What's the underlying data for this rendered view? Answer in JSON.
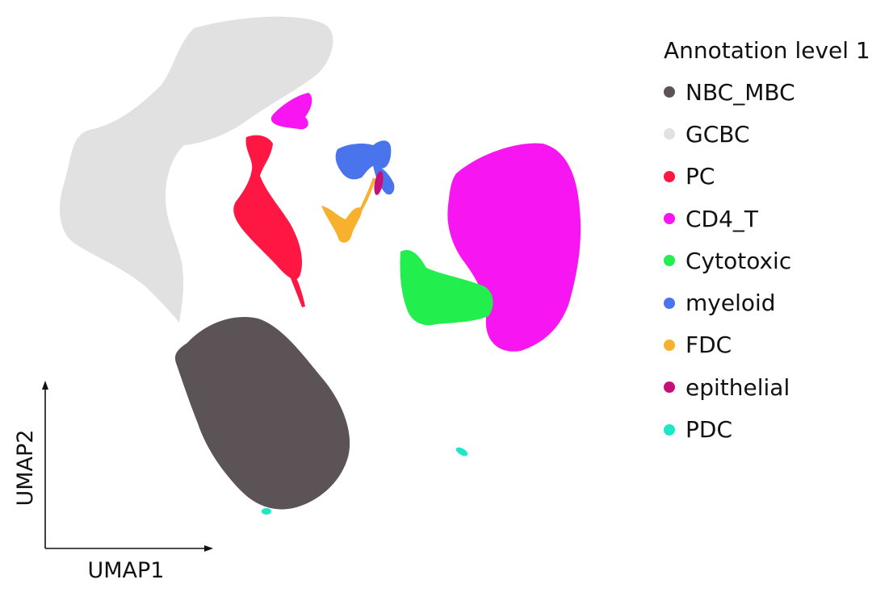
{
  "chart_data": {
    "type": "scatter",
    "xlabel": "UMAP1",
    "ylabel": "UMAP2",
    "legend_title": "Annotation level 1",
    "legend_position": "right",
    "grid": false,
    "ticks": false,
    "series": [
      {
        "name": "NBC_MBC",
        "color": "#5b5356"
      },
      {
        "name": "GCBC",
        "color": "#e2e1e2"
      },
      {
        "name": "PC",
        "color": "#ff1744"
      },
      {
        "name": "CD4_T",
        "color": "#f715f2"
      },
      {
        "name": "Cytotoxic",
        "color": "#22ee4e"
      },
      {
        "name": "myeloid",
        "color": "#4a74ec"
      },
      {
        "name": "FDC",
        "color": "#f7b12e"
      },
      {
        "name": "epithelial",
        "color": "#c4117a"
      },
      {
        "name": "PDC",
        "color": "#1ce8c7"
      }
    ]
  }
}
